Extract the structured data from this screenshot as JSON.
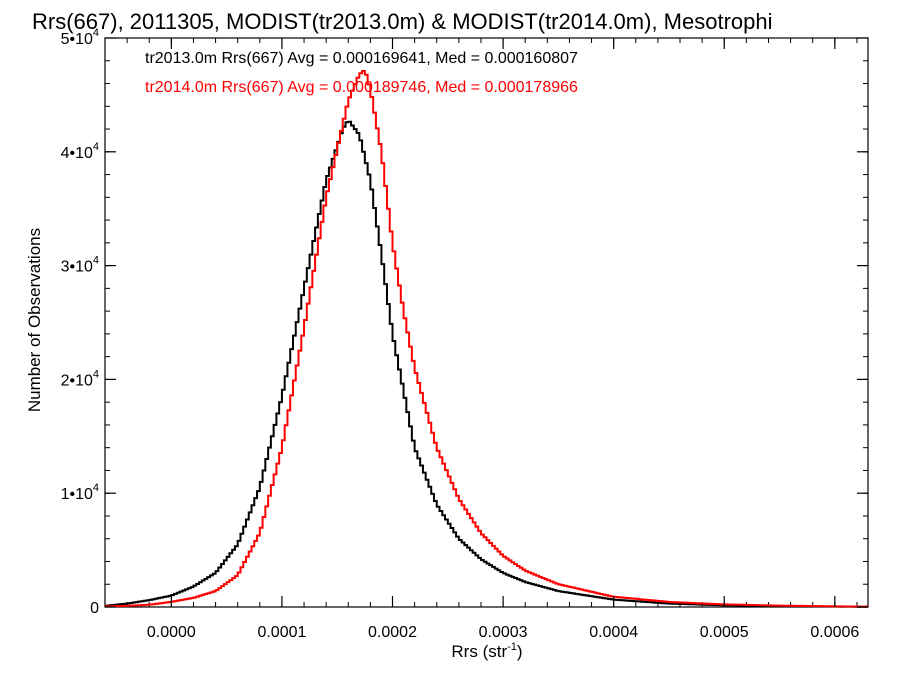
{
  "chart_data": {
    "type": "line",
    "title": "Rrs(667), 2011305, MODIST(tr2013.0m) & MODIST(tr2014.0m), Mesotrophi",
    "xlabel": "Rrs (str",
    "xlabel_sup": "-1",
    "xlabel_close": ")",
    "ylabel": "Number of Observations",
    "xlim": [
      -6e-05,
      0.00063
    ],
    "ylim": [
      0,
      50000
    ],
    "x_ticks": [
      {
        "value": 0.0,
        "label": "0.0000"
      },
      {
        "value": 0.0001,
        "label": "0.0001"
      },
      {
        "value": 0.0002,
        "label": "0.0002"
      },
      {
        "value": 0.0003,
        "label": "0.0003"
      },
      {
        "value": 0.0004,
        "label": "0.0004"
      },
      {
        "value": 0.0005,
        "label": "0.0005"
      },
      {
        "value": 0.0006,
        "label": "0.0006"
      }
    ],
    "y_ticks": [
      {
        "value": 0,
        "label": "0",
        "sup": ""
      },
      {
        "value": 10000,
        "label": "1•10",
        "sup": "4"
      },
      {
        "value": 20000,
        "label": "2•10",
        "sup": "4"
      },
      {
        "value": 30000,
        "label": "3•10",
        "sup": "4"
      },
      {
        "value": 40000,
        "label": "4•10",
        "sup": "4"
      },
      {
        "value": 50000,
        "label": "5•10",
        "sup": "4"
      }
    ],
    "legend_position": "top-left",
    "series": [
      {
        "legend": "tr2013.0m Rrs(667) Avg = 0.000169641, Med = 0.000160807",
        "color": "#000000",
        "x": [
          -6e-05,
          -4e-05,
          -2e-05,
          0.0,
          2e-05,
          4e-05,
          6e-05,
          8e-05,
          0.0001,
          0.00012,
          0.00014,
          0.000155,
          0.00016,
          0.00017,
          0.00018,
          0.00019,
          0.0002,
          0.00022,
          0.00024,
          0.00026,
          0.00028,
          0.0003,
          0.00032,
          0.00035,
          0.0004,
          0.00045,
          0.0005,
          0.00055,
          0.0006,
          0.00063
        ],
        "y": [
          100,
          300,
          600,
          1000,
          1800,
          3000,
          5500,
          10500,
          18500,
          28000,
          37500,
          42000,
          42800,
          41500,
          37500,
          31000,
          24000,
          14000,
          9000,
          6000,
          4200,
          3000,
          2200,
          1400,
          650,
          300,
          150,
          80,
          40,
          20
        ]
      },
      {
        "legend": "tr2014.0m Rrs(667) Avg = 0.000189746, Med = 0.000178966",
        "color": "#ff0000",
        "x": [
          -6e-05,
          -4e-05,
          -2e-05,
          0.0,
          2e-05,
          4e-05,
          6e-05,
          8e-05,
          0.0001,
          0.00012,
          0.00014,
          0.00016,
          0.00017,
          0.000175,
          0.00018,
          0.00019,
          0.0002,
          0.00021,
          0.00022,
          0.00024,
          0.00026,
          0.00028,
          0.0003,
          0.00032,
          0.00035,
          0.0004,
          0.00045,
          0.0005,
          0.00055,
          0.0006,
          0.00063
        ],
        "y": [
          50,
          100,
          200,
          450,
          800,
          1400,
          2800,
          6500,
          14000,
          24500,
          36000,
          44500,
          46800,
          47200,
          45500,
          40000,
          32000,
          26000,
          21000,
          14000,
          9500,
          6500,
          4500,
          3200,
          2000,
          900,
          450,
          230,
          120,
          60,
          30
        ]
      }
    ]
  }
}
